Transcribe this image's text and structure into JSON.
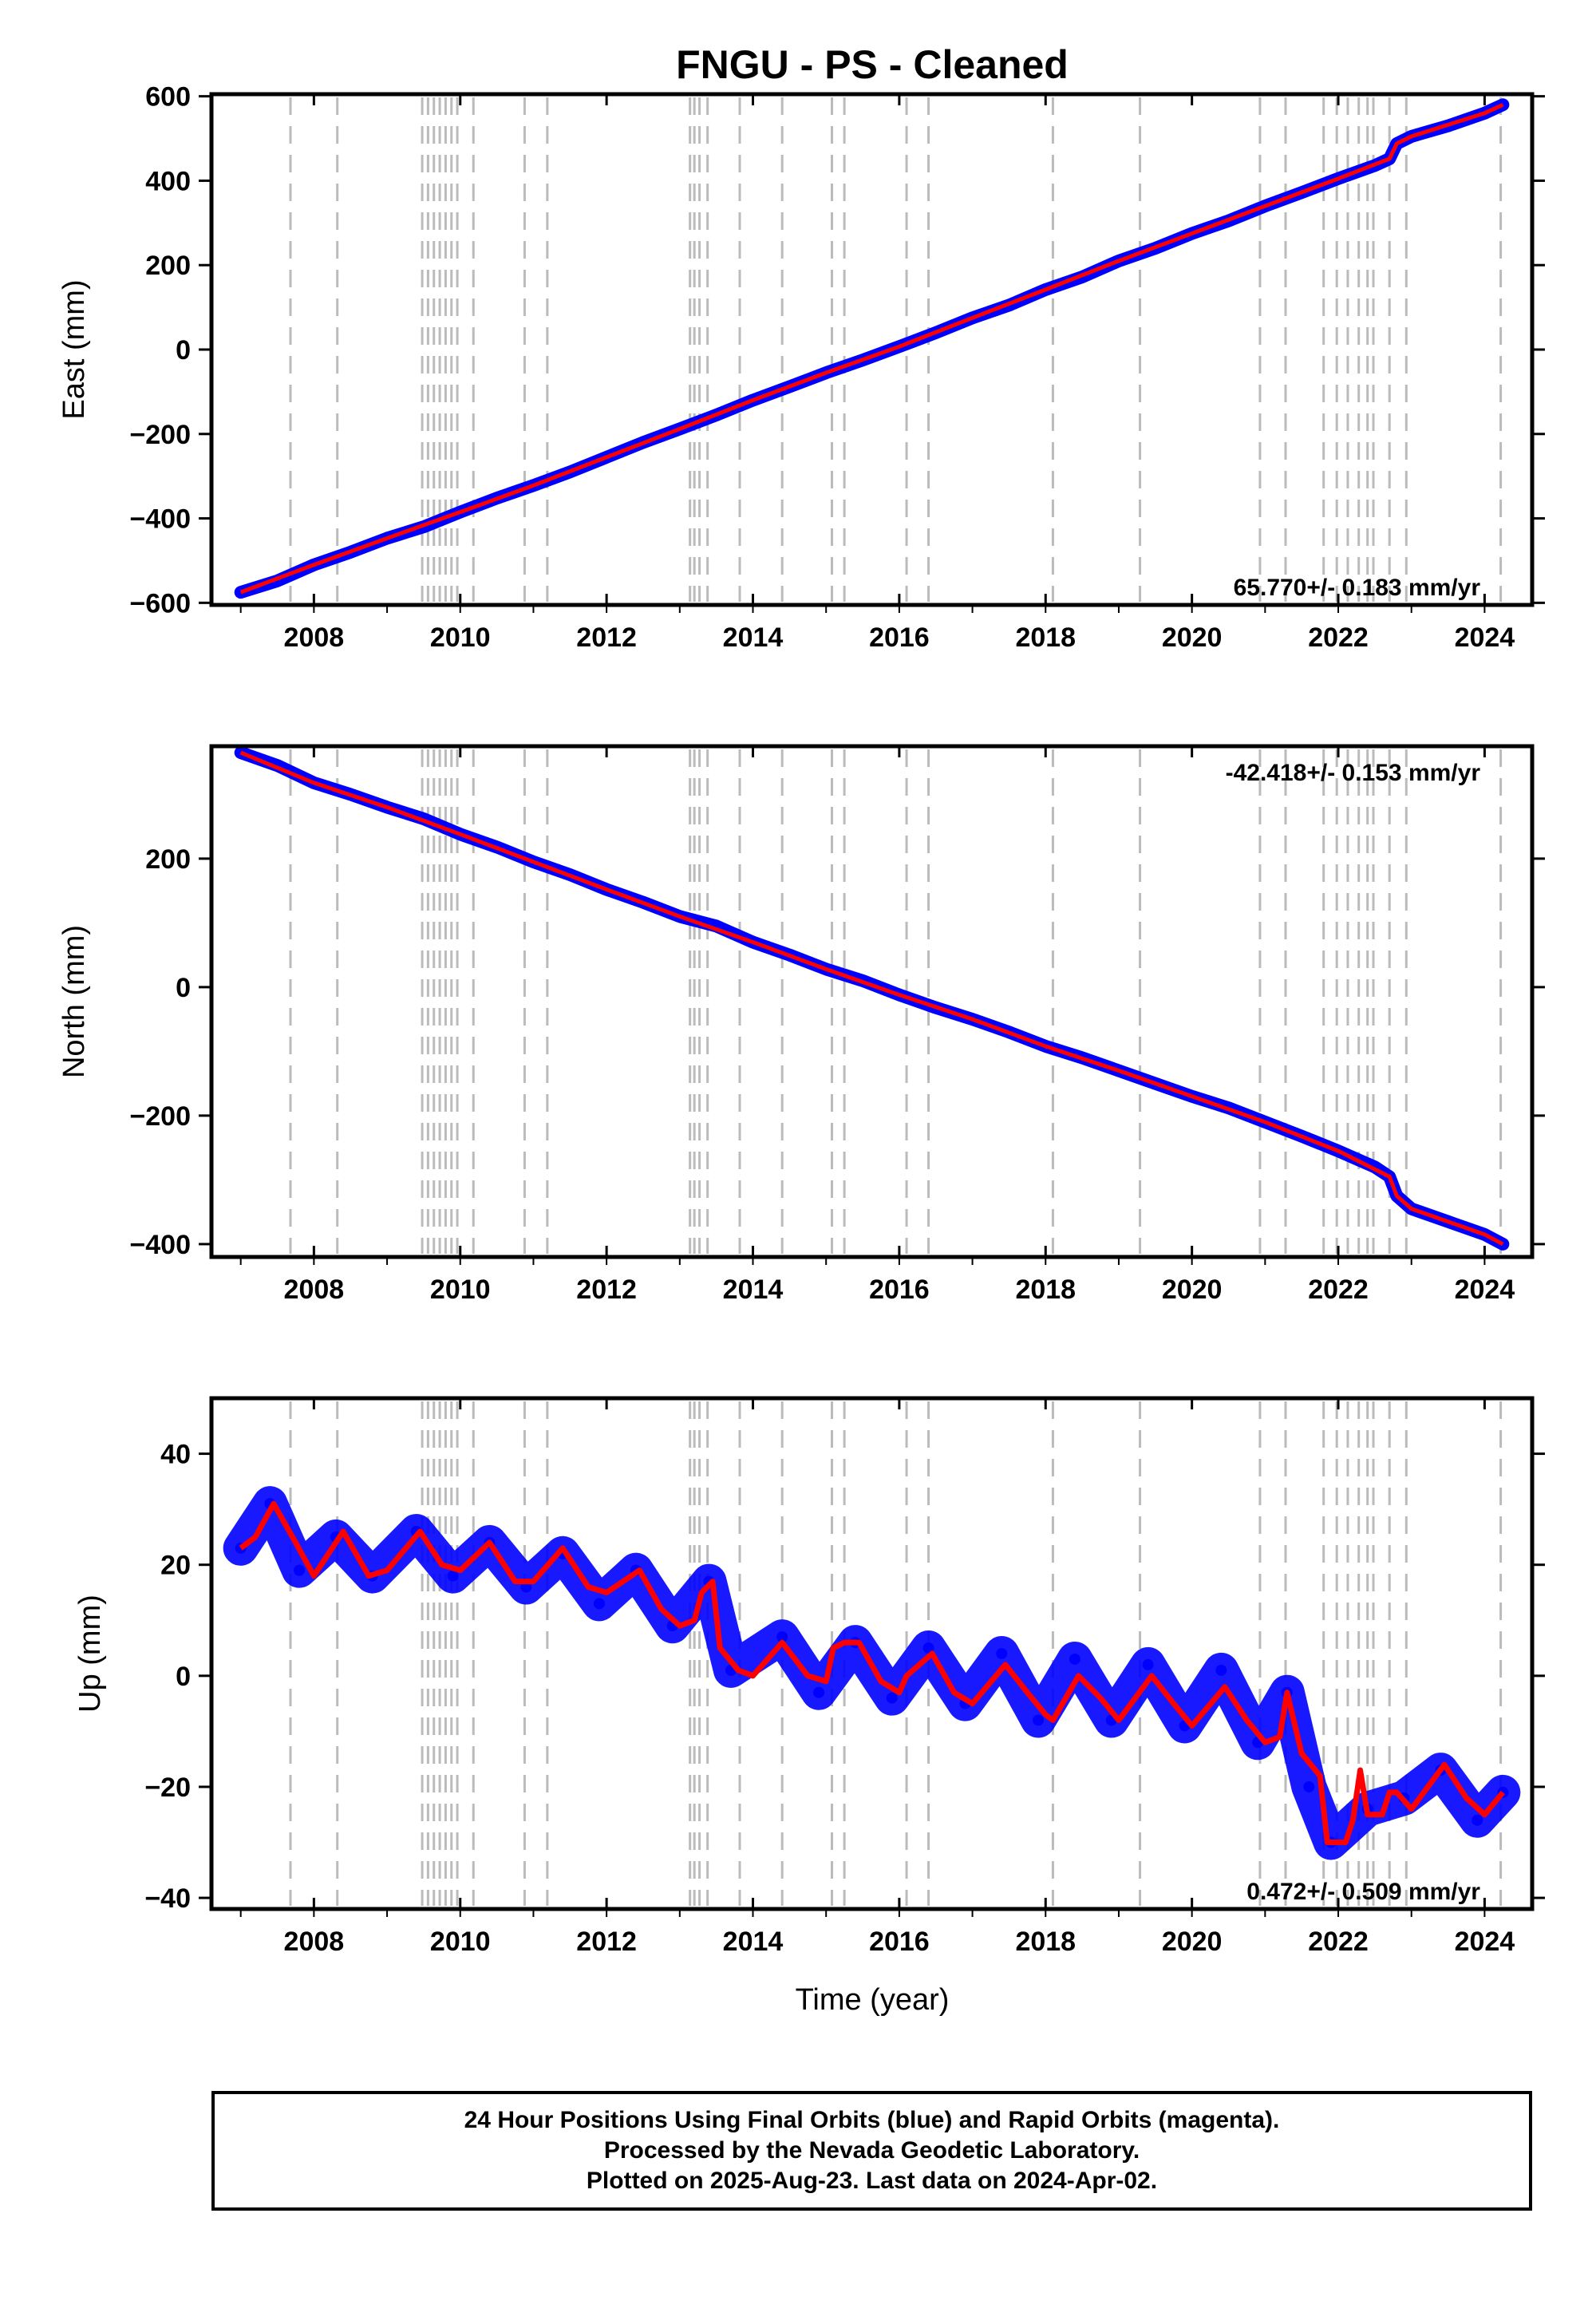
{
  "title": "FNGU  - PS - Cleaned",
  "colors": {
    "observations": "#0000ff",
    "model": "#ff0000",
    "event_lines": "#bbbbbb",
    "frame": "#000000"
  },
  "x_axis": {
    "label": "Time (year)",
    "range": [
      2006.6,
      2024.65
    ],
    "tick_labels": [
      "2008",
      "2010",
      "2012",
      "2014",
      "2016",
      "2018",
      "2020",
      "2022",
      "2024"
    ]
  },
  "event_lines_years": [
    2007.68,
    2008.32,
    2009.48,
    2009.56,
    2009.64,
    2009.72,
    2009.8,
    2009.88,
    2009.96,
    2010.18,
    2010.88,
    2011.19,
    2013.14,
    2013.2,
    2013.27,
    2013.38,
    2013.82,
    2014.4,
    2015.08,
    2015.25,
    2016.1,
    2016.4,
    2018.1,
    2019.29,
    2020.93,
    2021.28,
    2021.8,
    2021.98,
    2022.13,
    2022.28,
    2022.4,
    2022.48,
    2022.7,
    2022.93,
    2024.22
  ],
  "panels": {
    "east": {
      "ylabel": "East (mm)",
      "rate_text": "65.770+/- 0.183 mm/yr",
      "tick_labels": [
        "600",
        "400",
        "200",
        "0",
        "−200",
        "−400",
        "−600"
      ]
    },
    "north": {
      "ylabel": "North (mm)",
      "rate_text": "-42.418+/- 0.153 mm/yr",
      "tick_labels": [
        "200",
        "0",
        "−200",
        "−400"
      ]
    },
    "up": {
      "ylabel": "Up (mm)",
      "rate_text": "0.472+/- 0.509 mm/yr",
      "tick_labels": [
        "40",
        "20",
        "0",
        "−20",
        "−40"
      ]
    }
  },
  "footer": {
    "line1": "24 Hour Positions Using Final Orbits (blue) and Rapid Orbits (magenta).",
    "line2": "Processed by the Nevada Geodetic Laboratory.",
    "line3": "Plotted on 2025-Aug-23. Last data on 2024-Apr-02."
  },
  "chart_data": [
    {
      "type": "scatter",
      "panel": "East",
      "title": "FNGU  - PS - Cleaned",
      "xlabel": "",
      "ylabel": "East (mm)",
      "xlim": [
        2006.6,
        2024.65
      ],
      "ylim": [
        -605,
        605
      ],
      "rate": "65.770+/- 0.183 mm/yr",
      "series": [
        {
          "color": "#0000ff",
          "x": [
            2007.0,
            2007.5,
            2008.0,
            2008.5,
            2009.0,
            2009.5,
            2010.0,
            2010.5,
            2011.0,
            2011.5,
            2012.0,
            2012.5,
            2013.0,
            2013.5,
            2014.0,
            2014.5,
            2015.0,
            2015.5,
            2016.0,
            2016.5,
            2017.0,
            2017.5,
            2018.0,
            2018.5,
            2019.0,
            2019.5,
            2020.0,
            2020.5,
            2021.0,
            2021.5,
            2022.0,
            2022.5,
            2022.7,
            2022.8,
            2023.0,
            2023.5,
            2024.0,
            2024.25
          ],
          "y": [
            -575,
            -548,
            -510,
            -480,
            -447,
            -420,
            -385,
            -352,
            -322,
            -290,
            -255,
            -220,
            -188,
            -155,
            -120,
            -88,
            -55,
            -25,
            7,
            40,
            75,
            105,
            142,
            172,
            210,
            240,
            275,
            305,
            340,
            372,
            405,
            436,
            452,
            488,
            505,
            530,
            560,
            580
          ]
        },
        {
          "color": "#ff0000",
          "x": [
            2007.0,
            2008.0,
            2009.0,
            2010.0,
            2011.0,
            2012.0,
            2013.0,
            2014.0,
            2015.0,
            2016.0,
            2017.0,
            2018.0,
            2019.0,
            2020.0,
            2021.0,
            2022.0,
            2022.7,
            2022.8,
            2023.0,
            2024.0,
            2024.25
          ],
          "y": [
            -575,
            -510,
            -447,
            -385,
            -322,
            -255,
            -188,
            -120,
            -55,
            7,
            75,
            142,
            210,
            275,
            340,
            405,
            452,
            488,
            505,
            560,
            580
          ]
        }
      ]
    },
    {
      "type": "scatter",
      "panel": "North",
      "xlabel": "",
      "ylabel": "North (mm)",
      "xlim": [
        2006.6,
        2024.65
      ],
      "ylim": [
        -420,
        375
      ],
      "rate": "-42.418+/- 0.153 mm/yr",
      "series": [
        {
          "color": "#0000ff",
          "x": [
            2007.0,
            2007.5,
            2008.0,
            2008.5,
            2009.0,
            2009.5,
            2010.0,
            2010.5,
            2011.0,
            2011.5,
            2012.0,
            2012.5,
            2013.0,
            2013.5,
            2014.0,
            2014.5,
            2015.0,
            2015.5,
            2016.0,
            2016.5,
            2017.0,
            2017.5,
            2018.0,
            2018.5,
            2019.0,
            2019.5,
            2020.0,
            2020.5,
            2021.0,
            2021.5,
            2022.0,
            2022.5,
            2022.7,
            2022.8,
            2023.0,
            2023.5,
            2024.0,
            2024.25
          ],
          "y": [
            365,
            345,
            318,
            300,
            280,
            262,
            238,
            218,
            195,
            175,
            152,
            132,
            110,
            95,
            70,
            50,
            28,
            10,
            -12,
            -32,
            -50,
            -70,
            -92,
            -110,
            -130,
            -150,
            -170,
            -188,
            -210,
            -232,
            -255,
            -280,
            -295,
            -325,
            -345,
            -365,
            -385,
            -400
          ]
        },
        {
          "color": "#ff0000",
          "x": [
            2007.0,
            2008.0,
            2009.0,
            2010.0,
            2011.0,
            2012.0,
            2013.0,
            2014.0,
            2015.0,
            2016.0,
            2017.0,
            2018.0,
            2019.0,
            2020.0,
            2021.0,
            2022.0,
            2022.7,
            2022.8,
            2023.0,
            2024.0,
            2024.25
          ],
          "y": [
            365,
            318,
            280,
            238,
            195,
            152,
            110,
            70,
            28,
            -12,
            -50,
            -92,
            -130,
            -170,
            -210,
            -255,
            -295,
            -325,
            -345,
            -385,
            -400
          ]
        }
      ]
    },
    {
      "type": "scatter",
      "panel": "Up",
      "xlabel": "Time (year)",
      "ylabel": "Up (mm)",
      "xlim": [
        2006.6,
        2024.65
      ],
      "ylim": [
        -42,
        50
      ],
      "rate": "0.472+/- 0.509 mm/yr",
      "series": [
        {
          "color": "#0000ff",
          "x": [
            2007.0,
            2007.4,
            2007.8,
            2008.3,
            2008.8,
            2009.4,
            2009.9,
            2010.4,
            2010.9,
            2011.4,
            2011.9,
            2012.4,
            2012.9,
            2013.4,
            2013.7,
            2014.4,
            2014.9,
            2015.4,
            2015.9,
            2016.4,
            2016.9,
            2017.4,
            2017.9,
            2018.4,
            2018.9,
            2019.4,
            2019.9,
            2020.4,
            2020.9,
            2021.3,
            2021.6,
            2021.9,
            2022.4,
            2022.9,
            2023.4,
            2023.9,
            2024.25
          ],
          "y": [
            23,
            31,
            19,
            25,
            18,
            26,
            18,
            24,
            16,
            22,
            13,
            19,
            9,
            17,
            1,
            7,
            -3,
            6,
            -4,
            5,
            -5,
            4,
            -8,
            3,
            -8,
            2,
            -9,
            1,
            -12,
            -3,
            -20,
            -30,
            -24,
            -22,
            -17,
            -26,
            -21
          ]
        },
        {
          "color": "#ff0000",
          "x": [
            2007.0,
            2007.2,
            2007.45,
            2007.75,
            2008.0,
            2008.4,
            2008.75,
            2009.0,
            2009.45,
            2009.75,
            2010.0,
            2010.4,
            2010.75,
            2011.0,
            2011.4,
            2011.75,
            2012.0,
            2012.45,
            2012.75,
            2013.0,
            2013.2,
            2013.3,
            2013.45,
            2013.55,
            2013.8,
            2014.0,
            2014.4,
            2014.75,
            2015.0,
            2015.1,
            2015.25,
            2015.45,
            2015.75,
            2016.0,
            2016.1,
            2016.45,
            2016.75,
            2017.0,
            2017.45,
            2017.75,
            2018.0,
            2018.1,
            2018.45,
            2018.75,
            2019.0,
            2019.45,
            2019.75,
            2020.0,
            2020.45,
            2020.75,
            2021.0,
            2021.2,
            2021.3,
            2021.5,
            2021.75,
            2021.85,
            2022.1,
            2022.2,
            2022.3,
            2022.4,
            2022.6,
            2022.7,
            2022.8,
            2023.0,
            2023.45,
            2023.75,
            2024.0,
            2024.25
          ],
          "y": [
            23,
            25,
            31,
            24,
            18,
            26,
            18,
            19,
            26,
            20,
            19,
            24,
            17,
            17,
            23,
            16,
            15,
            19,
            12,
            9,
            10,
            15,
            17,
            5,
            1,
            0,
            6,
            0,
            -1,
            5,
            6,
            6,
            -1,
            -3,
            0,
            4,
            -3,
            -5,
            2,
            -3,
            -7,
            -8,
            0,
            -4,
            -8,
            0,
            -5,
            -9,
            -2,
            -8,
            -12,
            -11,
            -3,
            -14,
            -18,
            -30,
            -30,
            -26,
            -17,
            -25,
            -25,
            -21,
            -21,
            -24,
            -16,
            -22,
            -25,
            -21
          ]
        }
      ]
    }
  ]
}
